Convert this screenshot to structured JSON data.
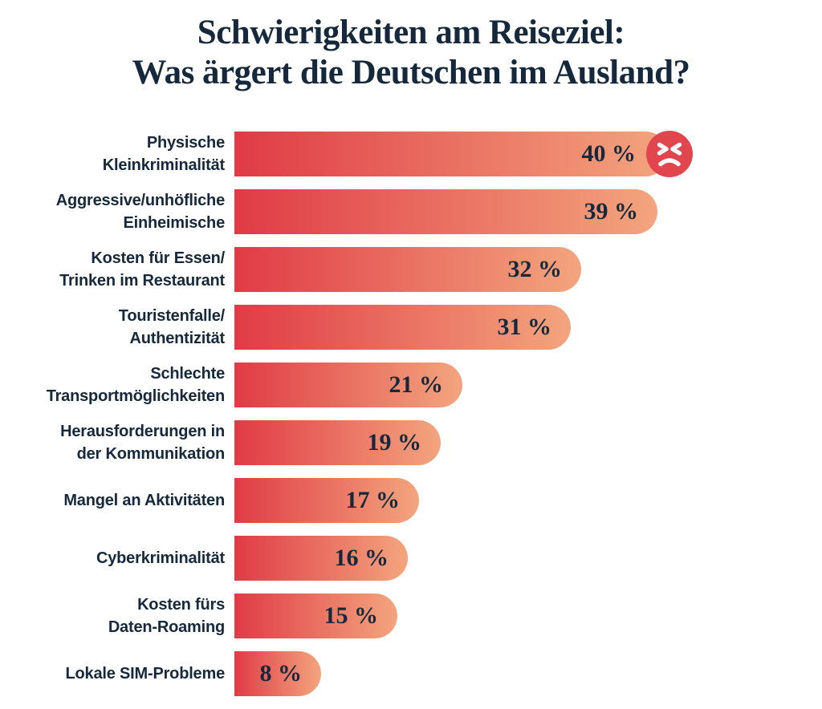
{
  "title": {
    "line1": "Schwierigkeiten am Reiseziel:",
    "line2": "Was ärgert die Deutschen im Ausland?"
  },
  "colors": {
    "title_text": "#16293c",
    "label_text": "#16293c",
    "value_text": "#16293c",
    "bar_gradient_start": "#e03b46",
    "bar_gradient_end": "#f3a57e",
    "angry_icon_background": "#e1464e",
    "angry_icon_face": "#ffffff",
    "background": "#ffffff"
  },
  "chart_data": {
    "type": "bar",
    "orientation": "horizontal",
    "title": "Schwierigkeiten am Reiseziel: Was ärgert die Deutschen im Ausland?",
    "categories": [
      "Physische Kleinkriminalität",
      "Aggressive/unhöfliche Einheimische",
      "Kosten für Essen/Trinken im Restaurant",
      "Touristenfalle/Authentizität",
      "Schlechte Transportmöglichkeiten",
      "Herausforderungen in der Kommunikation",
      "Mangel an Aktivitäten",
      "Cyberkriminalität",
      "Kosten fürs Daten-Roaming",
      "Lokale SIM-Probleme"
    ],
    "values": [
      40,
      39,
      32,
      31,
      21,
      19,
      17,
      16,
      15,
      8
    ],
    "value_suffix": " %",
    "xlim": [
      0,
      40
    ],
    "grid": false,
    "legend": false,
    "annotations": [
      "angry-face icon at end of top bar"
    ]
  },
  "rows": [
    {
      "label_lines": [
        "Physische",
        "Kleinkriminalität"
      ],
      "value": 40,
      "value_label": "40 %",
      "icon": "angry-face"
    },
    {
      "label_lines": [
        "Aggressive/unhöfliche",
        "Einheimische"
      ],
      "value": 39,
      "value_label": "39 %"
    },
    {
      "label_lines": [
        "Kosten für Essen/",
        "Trinken im Restaurant"
      ],
      "value": 32,
      "value_label": "32 %"
    },
    {
      "label_lines": [
        "Touristenfalle/",
        "Authentizität"
      ],
      "value": 31,
      "value_label": "31 %"
    },
    {
      "label_lines": [
        "Schlechte",
        "Transportmöglichkeiten"
      ],
      "value": 21,
      "value_label": "21 %"
    },
    {
      "label_lines": [
        "Herausforderungen in",
        "der Kommunikation"
      ],
      "value": 19,
      "value_label": "19 %"
    },
    {
      "label_lines": [
        "Mangel an Aktivitäten"
      ],
      "value": 17,
      "value_label": "17 %"
    },
    {
      "label_lines": [
        "Cyberkriminalität"
      ],
      "value": 16,
      "value_label": "16 %"
    },
    {
      "label_lines": [
        "Kosten fürs",
        "Daten-Roaming"
      ],
      "value": 15,
      "value_label": "15 %"
    },
    {
      "label_lines": [
        "Lokale SIM-Probleme"
      ],
      "value": 8,
      "value_label": "8 %"
    }
  ]
}
